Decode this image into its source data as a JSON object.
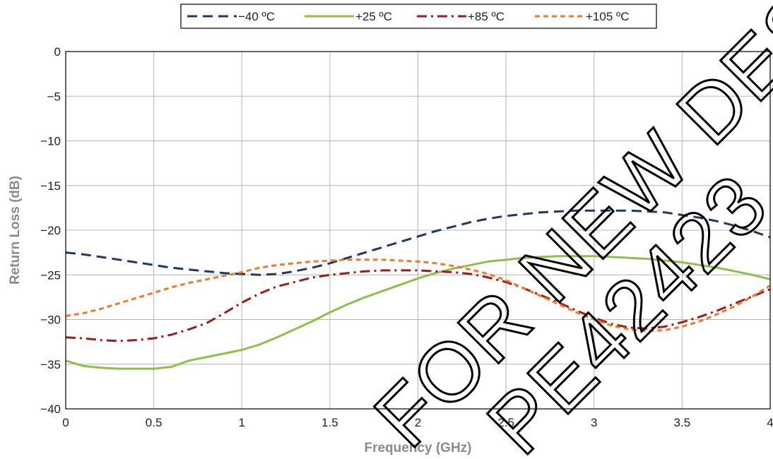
{
  "chart_data": {
    "type": "line",
    "xlabel": "Frequency (GHz)",
    "ylabel": "Return Loss (dB)",
    "xlim": [
      0,
      4
    ],
    "ylim": [
      -40,
      0
    ],
    "xticks": [
      0,
      0.5,
      1,
      1.5,
      2,
      2.5,
      3,
      3.5,
      4
    ],
    "yticks": [
      0,
      -5,
      -10,
      -15,
      -20,
      -25,
      -30,
      -35,
      -40
    ],
    "xtick_labels": [
      "0",
      "0.5",
      "1",
      "1.5",
      "2",
      "2.5",
      "3",
      "3.5",
      "4"
    ],
    "ytick_labels": [
      "0",
      "−5",
      "−10",
      "−15",
      "−20",
      "−25",
      "−30",
      "−35",
      "−40"
    ],
    "grid": true,
    "legend_position": "top-center",
    "x": [
      0,
      0.1,
      0.2,
      0.3,
      0.4,
      0.5,
      0.6,
      0.7,
      0.8,
      0.9,
      1.0,
      1.1,
      1.2,
      1.3,
      1.4,
      1.5,
      1.6,
      1.7,
      1.8,
      1.9,
      2.0,
      2.1,
      2.2,
      2.3,
      2.4,
      2.5,
      2.6,
      2.7,
      2.8,
      2.9,
      3.0,
      3.1,
      3.2,
      3.3,
      3.4,
      3.5,
      3.6,
      3.7,
      3.8,
      3.9,
      4.0
    ],
    "series": [
      {
        "name": "−40 ºC",
        "color": "#1f3864",
        "dash": "dash",
        "values": [
          -22.5,
          -22.7,
          -23.0,
          -23.3,
          -23.6,
          -23.9,
          -24.2,
          -24.4,
          -24.6,
          -24.8,
          -24.9,
          -25.0,
          -24.9,
          -24.6,
          -24.2,
          -23.7,
          -23.1,
          -22.5,
          -21.9,
          -21.3,
          -20.7,
          -20.1,
          -19.6,
          -19.1,
          -18.7,
          -18.4,
          -18.2,
          -18.0,
          -17.9,
          -17.8,
          -17.8,
          -17.8,
          -17.8,
          -17.9,
          -18.0,
          -18.3,
          -18.6,
          -19.0,
          -19.5,
          -20.1,
          -20.8
        ]
      },
      {
        "name": "+25 ºC",
        "color": "#8fbf4a",
        "dash": "solid",
        "values": [
          -34.6,
          -35.2,
          -35.4,
          -35.5,
          -35.5,
          -35.5,
          -35.3,
          -34.6,
          -34.2,
          -33.8,
          -33.4,
          -32.8,
          -32.0,
          -31.1,
          -30.2,
          -29.2,
          -28.3,
          -27.5,
          -26.8,
          -26.1,
          -25.4,
          -24.8,
          -24.3,
          -23.9,
          -23.5,
          -23.3,
          -23.1,
          -23.0,
          -22.9,
          -22.9,
          -22.9,
          -23.0,
          -23.1,
          -23.2,
          -23.4,
          -23.6,
          -23.9,
          -24.2,
          -24.6,
          -25.0,
          -25.5
        ]
      },
      {
        "name": "+85 ºC",
        "color": "#9c1c1c",
        "dash": "dashdot",
        "values": [
          -32.0,
          -32.1,
          -32.3,
          -32.4,
          -32.3,
          -32.1,
          -31.7,
          -31.1,
          -30.4,
          -29.3,
          -28.1,
          -27.1,
          -26.3,
          -25.8,
          -25.3,
          -25.0,
          -24.8,
          -24.6,
          -24.5,
          -24.5,
          -24.5,
          -24.6,
          -24.7,
          -24.9,
          -25.3,
          -25.8,
          -26.5,
          -27.3,
          -28.1,
          -29.0,
          -29.8,
          -30.5,
          -30.9,
          -31.0,
          -30.8,
          -30.3,
          -29.7,
          -29.0,
          -28.2,
          -27.4,
          -26.6
        ]
      },
      {
        "name": "+105 ºC",
        "color": "#ee7a30",
        "dash": "dot",
        "values": [
          -29.6,
          -29.3,
          -28.8,
          -28.2,
          -27.6,
          -27.0,
          -26.4,
          -25.9,
          -25.5,
          -25.1,
          -24.7,
          -24.2,
          -23.9,
          -23.7,
          -23.5,
          -23.4,
          -23.3,
          -23.3,
          -23.3,
          -23.4,
          -23.5,
          -23.7,
          -24.0,
          -24.4,
          -24.9,
          -25.6,
          -26.5,
          -27.4,
          -28.3,
          -29.2,
          -30.0,
          -30.7,
          -31.1,
          -31.3,
          -31.2,
          -30.8,
          -30.2,
          -29.4,
          -28.5,
          -27.4,
          -26.2
        ]
      }
    ]
  },
  "watermark": {
    "line1": "FOR NEW DESIGN",
    "line2": "PE42423"
  }
}
